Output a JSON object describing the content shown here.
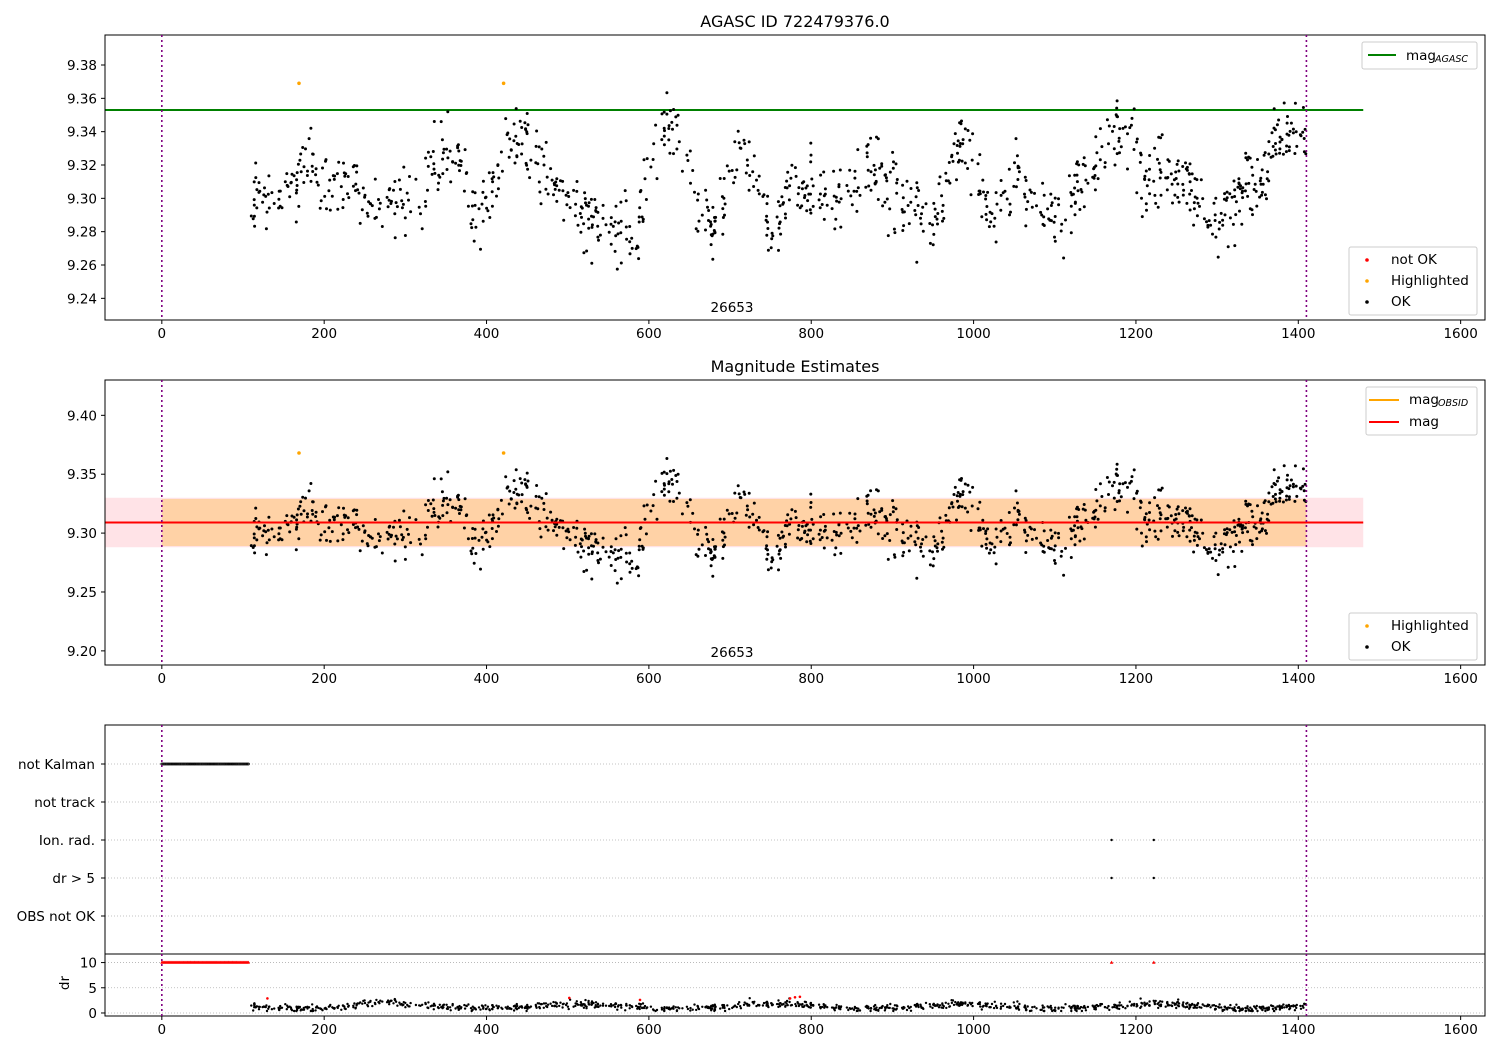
{
  "chart_data": [
    {
      "id": "top",
      "type": "scatter",
      "title": "AGASC ID 722479376.0",
      "xlim": [
        -70,
        1630
      ],
      "ylim": [
        9.227,
        9.398
      ],
      "xticks": [
        0,
        200,
        400,
        600,
        800,
        1000,
        1200,
        1400,
        1600
      ],
      "yticks": [
        9.24,
        9.26,
        9.28,
        9.3,
        9.32,
        9.34,
        9.36,
        9.38
      ],
      "ytick_labels": [
        "9.24",
        "9.26",
        "9.28",
        "9.30",
        "9.32",
        "9.34",
        "9.36",
        "9.38"
      ],
      "vlines": [
        0,
        1410
      ],
      "obsid_label": {
        "text": "26653",
        "x": 700,
        "y": 9.2325
      },
      "mag_agasc": {
        "value": 9.353,
        "x_range": [
          -70,
          1480
        ],
        "color": "#008000"
      },
      "series": [
        {
          "name": "not OK",
          "color": "#ff0000",
          "points": []
        },
        {
          "name": "Highlighted",
          "color": "#ffa500",
          "points": [
            [
              169,
              9.369
            ],
            [
              421,
              9.369
            ]
          ]
        },
        {
          "name": "OK",
          "color": "#000000",
          "generated": true
        }
      ],
      "legend_lines": [
        {
          "label": "mag",
          "sub": "AGASC",
          "color": "#008000"
        }
      ],
      "legend_points": [
        {
          "label": "not OK",
          "color": "#ff0000"
        },
        {
          "label": "Highlighted",
          "color": "#ffa500"
        },
        {
          "label": "OK",
          "color": "#000000"
        }
      ]
    },
    {
      "id": "mid",
      "type": "scatter",
      "title": "Magnitude Estimates",
      "xlim": [
        -70,
        1630
      ],
      "ylim": [
        9.188,
        9.43
      ],
      "xticks": [
        0,
        200,
        400,
        600,
        800,
        1000,
        1200,
        1400,
        1600
      ],
      "yticks": [
        9.2,
        9.25,
        9.3,
        9.35,
        9.4
      ],
      "ytick_labels": [
        "9.20",
        "9.25",
        "9.30",
        "9.35",
        "9.40"
      ],
      "vlines": [
        0,
        1410
      ],
      "obsid_label": {
        "text": "26653",
        "x": 700,
        "y": 9.195
      },
      "mag": {
        "value": 9.309,
        "band": [
          9.288,
          9.33
        ],
        "x_range": [
          -70,
          1480
        ],
        "color": "#ff0000"
      },
      "mag_obsid": {
        "value": 9.309,
        "band": [
          9.289,
          9.329
        ],
        "x_range": [
          0,
          1410
        ],
        "color": "#ffa500"
      },
      "series": [
        {
          "name": "Highlighted",
          "color": "#ffa500",
          "points": [
            [
              169,
              9.368
            ],
            [
              421,
              9.368
            ]
          ]
        },
        {
          "name": "OK",
          "color": "#000000",
          "generated": true
        }
      ],
      "legend_lines": [
        {
          "label": "mag",
          "sub": "OBSID",
          "color": "#ffa500"
        },
        {
          "label": "mag",
          "sub": "",
          "color": "#ff0000"
        }
      ],
      "legend_points": [
        {
          "label": "Highlighted",
          "color": "#ffa500"
        },
        {
          "label": "OK",
          "color": "#000000"
        }
      ]
    },
    {
      "id": "flags",
      "type": "scatter",
      "xlim": [
        -70,
        1630
      ],
      "categories": [
        "not Kalman",
        "not track",
        "Ion. rad.",
        "dr > 5",
        "OBS not OK"
      ],
      "vlines": [
        0,
        1410
      ],
      "not_kalman_x_range": [
        0,
        108
      ],
      "ion_rad_x": [
        1170,
        1222
      ],
      "dr5_x": [
        1170,
        1222
      ]
    },
    {
      "id": "dr",
      "type": "scatter",
      "xlim": [
        -70,
        1630
      ],
      "ylim": [
        -0.6,
        11.7
      ],
      "ylabel": "dr",
      "yticks": [
        0,
        5,
        10
      ],
      "ytick_labels": [
        "0",
        "5",
        "10"
      ],
      "xticks": [
        0,
        200,
        400,
        600,
        800,
        1000,
        1200,
        1400,
        1600
      ],
      "vlines": [
        0,
        1410
      ],
      "clipped_red_x_range": [
        0,
        108
      ],
      "clipped_red_value": 10,
      "clipped_red_isolated": [
        1170,
        1222
      ],
      "red_points": [
        [
          130,
          2.9
        ],
        [
          502,
          3.0
        ],
        [
          589,
          2.6
        ],
        [
          774,
          2.9
        ],
        [
          780,
          3.1
        ],
        [
          786,
          3.2
        ]
      ]
    }
  ]
}
